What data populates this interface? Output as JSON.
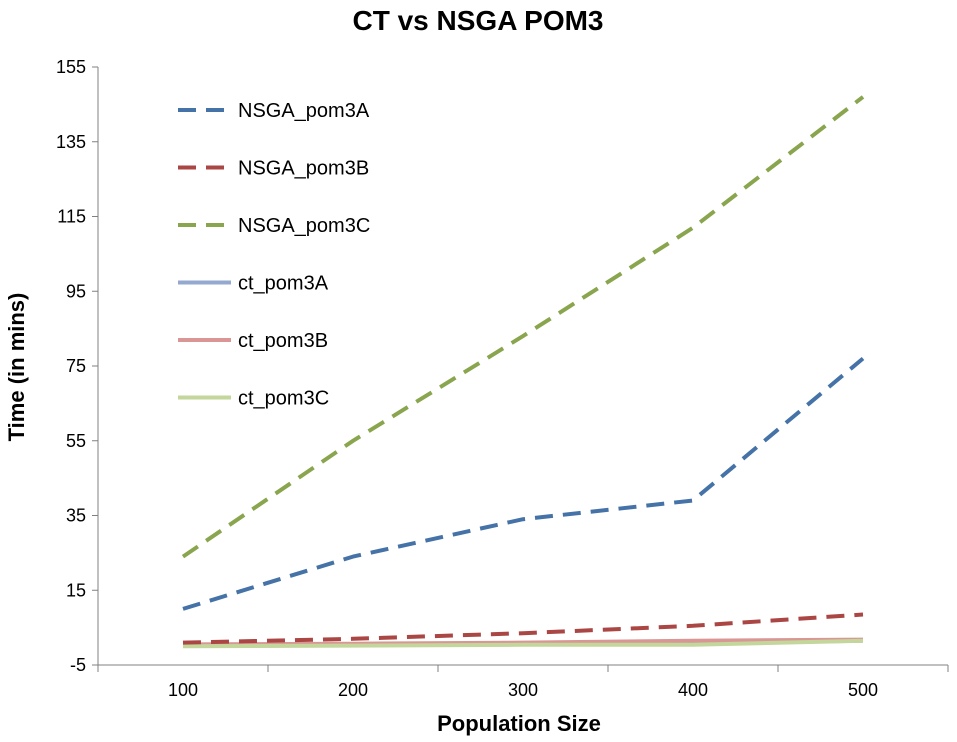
{
  "chart_data": {
    "type": "line",
    "title": "CT vs NSGA POM3",
    "xlabel": "Population Size",
    "ylabel": "Time (in mins)",
    "categories": [
      "100",
      "200",
      "300",
      "400",
      "500"
    ],
    "ylim": [
      -5,
      155
    ],
    "yticks": [
      "-5",
      "15",
      "35",
      "55",
      "75",
      "95",
      "115",
      "135",
      "155"
    ],
    "grid": false,
    "legend_position": "top-left (inside)",
    "series": [
      {
        "name": "NSGA_pom3A",
        "values": [
          10,
          24,
          34,
          39,
          77
        ],
        "color": "#4572A7",
        "dash": "dashed"
      },
      {
        "name": "NSGA_pom3B",
        "values": [
          1,
          2,
          3.5,
          5.5,
          8.5
        ],
        "color": "#AA4643",
        "dash": "dashed"
      },
      {
        "name": "NSGA_pom3C",
        "values": [
          24,
          55,
          83,
          112,
          147
        ],
        "color": "#89A54E",
        "dash": "dashed"
      },
      {
        "name": "ct_pom3A",
        "values": [
          0.2,
          0.4,
          0.6,
          0.8,
          1.5
        ],
        "color": "#93A9CF",
        "dash": "solid"
      },
      {
        "name": "ct_pom3B",
        "values": [
          0.5,
          0.7,
          1.0,
          1.5,
          1.8
        ],
        "color": "#D99694",
        "dash": "solid"
      },
      {
        "name": "ct_pom3C",
        "values": [
          0.0,
          0.2,
          0.4,
          0.4,
          1.5
        ],
        "color": "#C3D69B",
        "dash": "solid"
      }
    ]
  }
}
